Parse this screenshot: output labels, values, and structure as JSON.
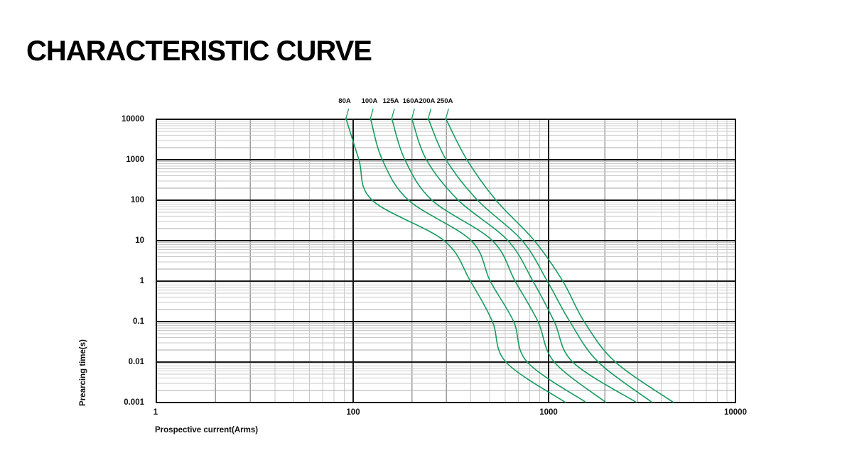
{
  "page": {
    "title": "CHARACTERISTIC CURVE"
  },
  "chart_data": {
    "type": "line",
    "title": "CHARACTERISTIC CURVE",
    "xlabel": "Prospective current(Arms)",
    "ylabel": "Prearcing time(s)",
    "x_axis": {
      "label": "Prospective current(Arms)",
      "scale": "log",
      "range": [
        1,
        10000
      ],
      "ticks": [
        "1",
        "100",
        "1000",
        "10000"
      ]
    },
    "y_axis": {
      "label": "Prearcing time(s)",
      "scale": "log",
      "range": [
        0.001,
        10000
      ],
      "ticks": [
        "10000",
        "1000",
        "100",
        "10",
        "1",
        "0.1",
        "0.01",
        "0.001"
      ]
    },
    "grid": "log major and minor gridlines on",
    "legend_position": "labels above curve tops",
    "curve_color": "#169c60",
    "times_s": [
      10000,
      1000,
      100,
      10,
      1,
      0.1,
      0.01,
      0.001
    ],
    "series": [
      {
        "name": "80A",
        "current_A": [
          85,
          107,
          125,
          292,
          398,
          516,
          605,
          1234
        ]
      },
      {
        "name": "100A",
        "current_A": [
          123,
          141,
          192,
          402,
          503,
          663,
          778,
          1590
        ]
      },
      {
        "name": "125A",
        "current_A": [
          158,
          184,
          253,
          516,
          674,
          883,
          1073,
          2030
        ]
      },
      {
        "name": "160A",
        "current_A": [
          200,
          237,
          345,
          620,
          832,
          1073,
          1347,
          2960
        ]
      },
      {
        "name": "200A",
        "current_A": [
          243,
          299,
          433,
          733,
          985,
          1300,
          1846,
          3590
        ]
      },
      {
        "name": "250A",
        "current_A": [
          299,
          382,
          538,
          846,
          1191,
          1550,
          2280,
          4670
        ]
      }
    ]
  }
}
